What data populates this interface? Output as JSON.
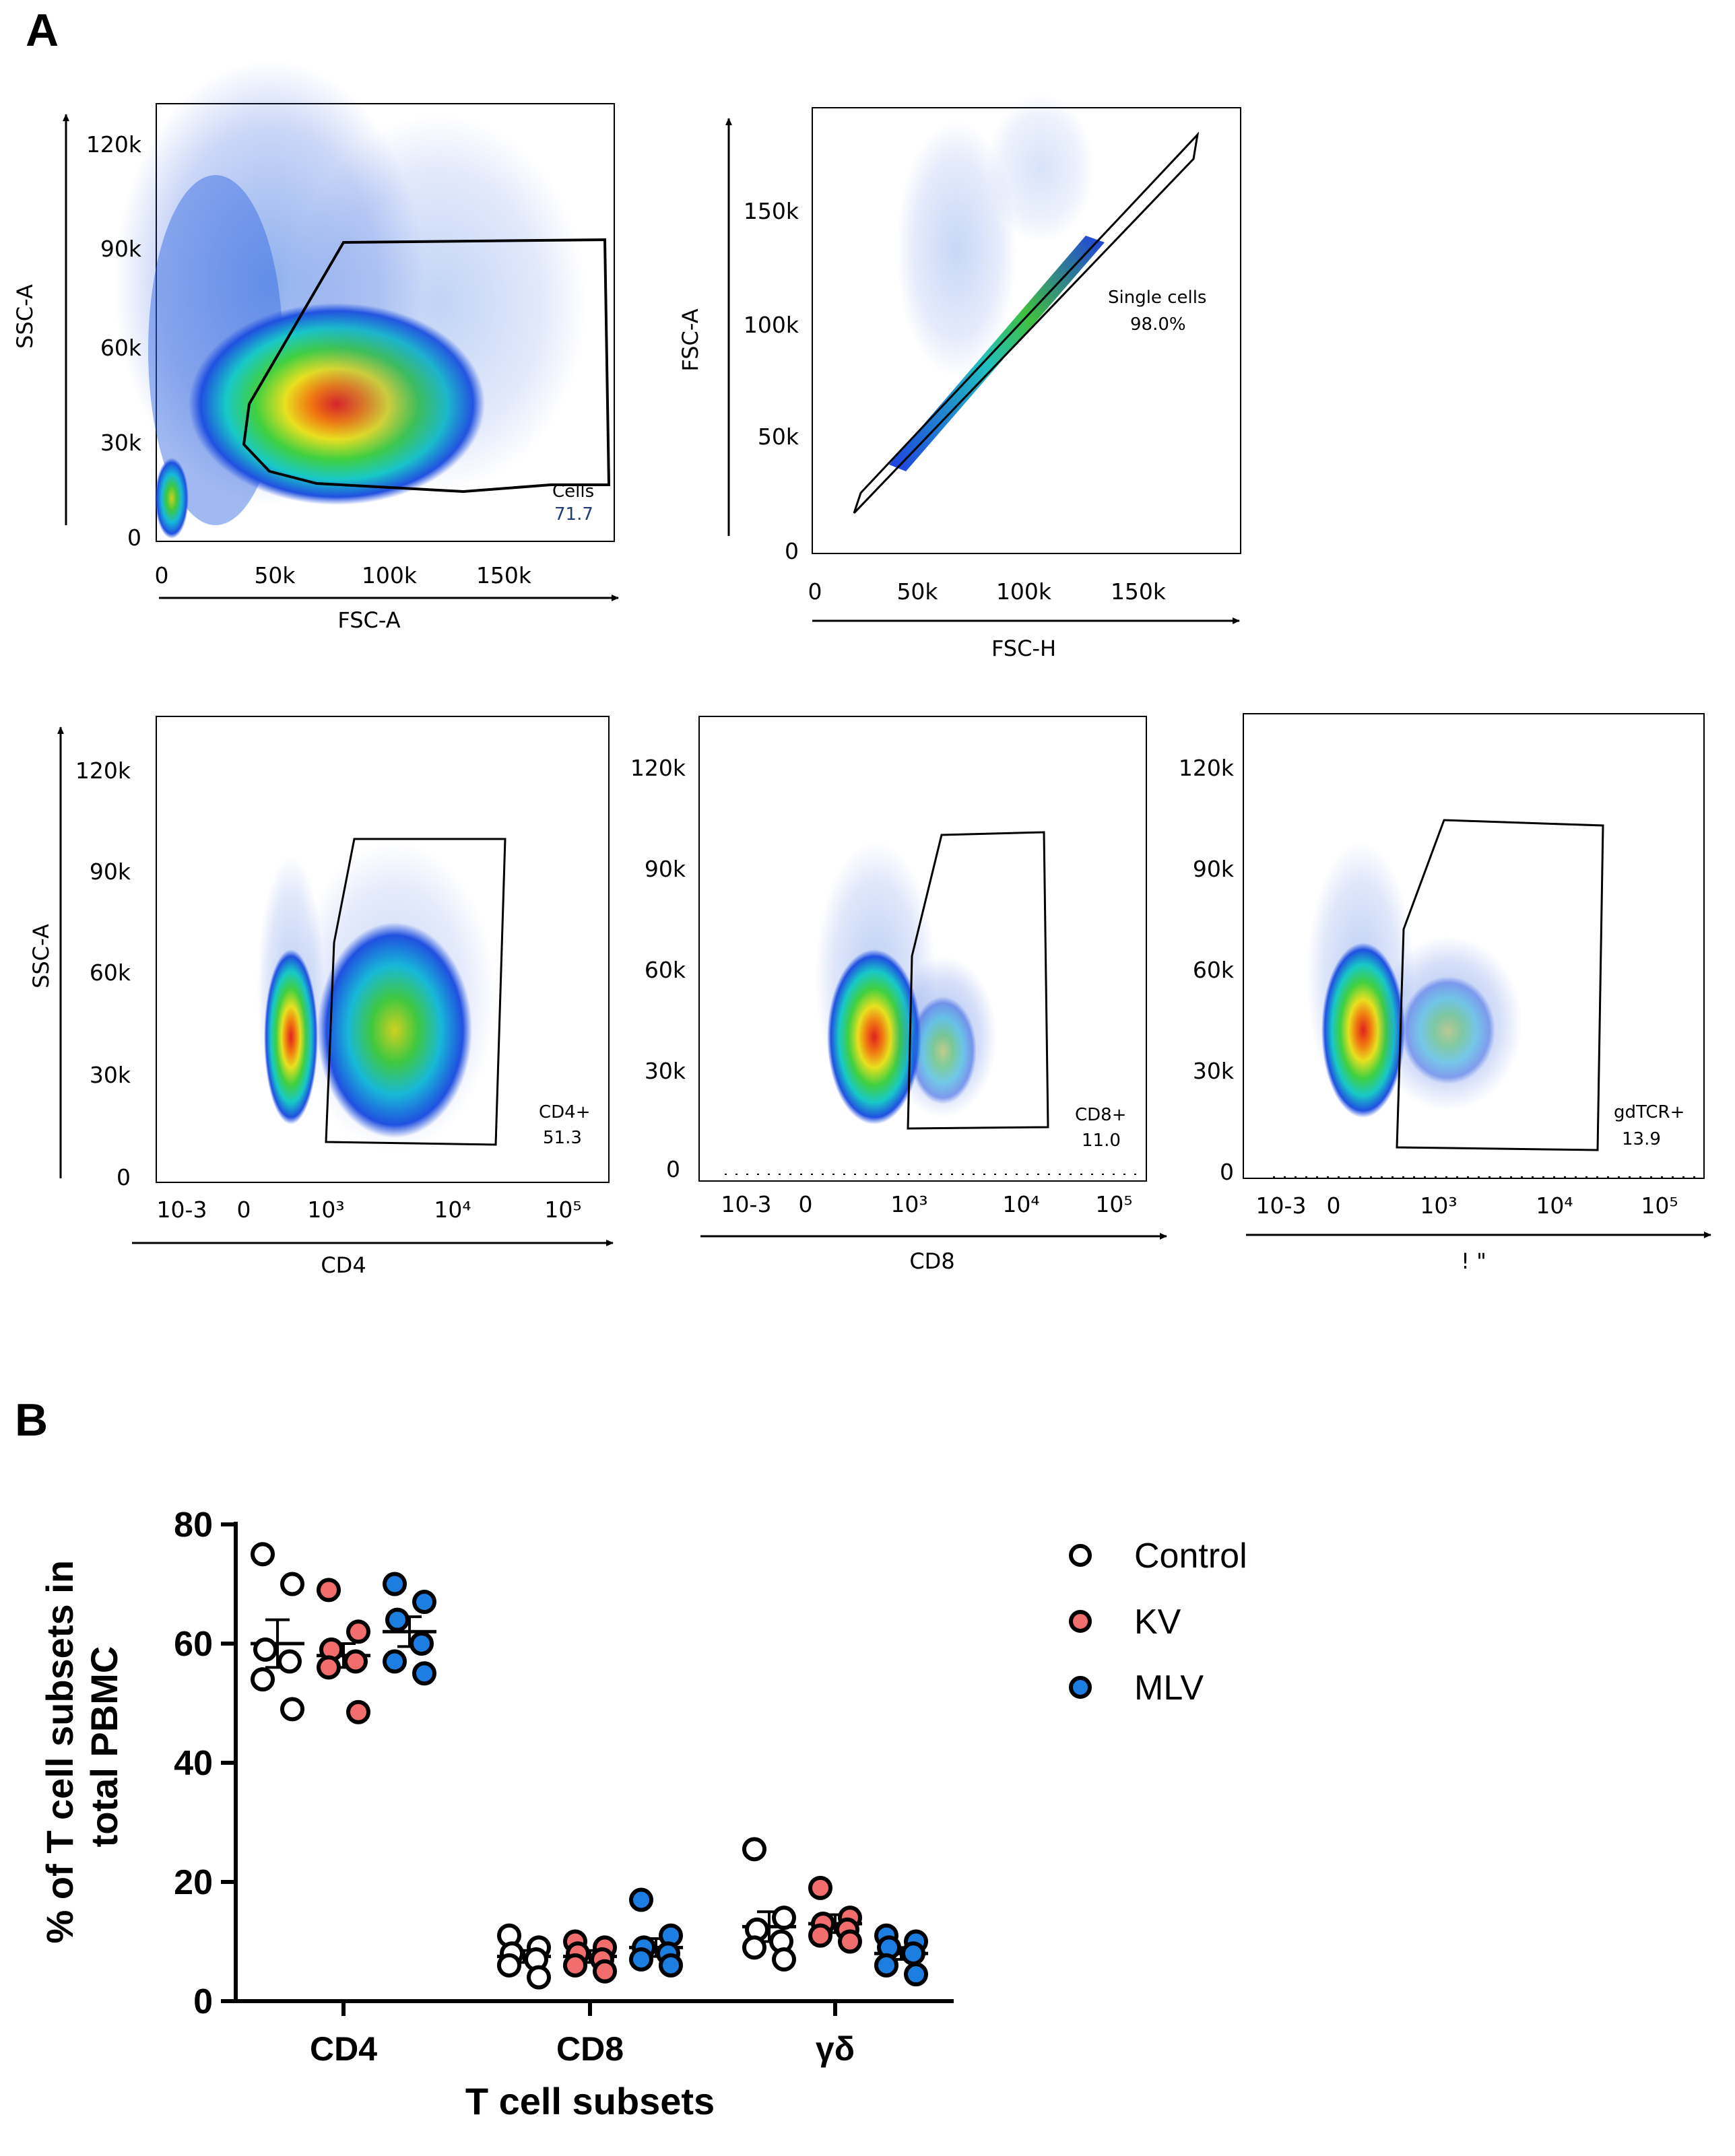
{
  "panel_a_label": "A",
  "panel_b_label": "B",
  "flow_plots": [
    {
      "id": "fsc-ssc",
      "x_label": "FSC-A",
      "y_label": "SSC-A",
      "x_ticks": [
        "0",
        "50k",
        "100k",
        "150k"
      ],
      "y_ticks": [
        "0",
        "30k",
        "60k",
        "90k",
        "120k"
      ],
      "gate_name": "Cells",
      "gate_value": "71.7"
    },
    {
      "id": "singlets",
      "x_label": "FSC-H",
      "y_label": "FSC-A",
      "x_ticks": [
        "0",
        "50k",
        "100k",
        "150k"
      ],
      "y_ticks": [
        "0",
        "50k",
        "100k",
        "150k"
      ],
      "gate_name": "Single cells",
      "gate_value": "98.0%"
    },
    {
      "id": "cd4",
      "x_label": "CD4",
      "y_label": "SSC-A",
      "x_ticks": [
        "10-3",
        "0",
        "10³",
        "10⁴",
        "10⁵"
      ],
      "y_ticks": [
        "0",
        "30k",
        "60k",
        "90k",
        "120k"
      ],
      "gate_name": "CD4+",
      "gate_value": "51.3"
    },
    {
      "id": "cd8",
      "x_label": "CD8",
      "y_label": "",
      "x_ticks": [
        "10-3",
        "0",
        "10³",
        "10⁴",
        "10⁵"
      ],
      "y_ticks": [
        "0",
        "30k",
        "60k",
        "90k",
        "120k"
      ],
      "gate_name": "CD8+",
      "gate_value": "11.0"
    },
    {
      "id": "gdtcr",
      "x_label": "! \"",
      "y_label": "",
      "x_ticks": [
        "10-3",
        "0",
        "10³",
        "10⁴",
        "10⁵"
      ],
      "y_ticks": [
        "0",
        "30k",
        "60k",
        "90k",
        "120k"
      ],
      "gate_name": "gdTCR+",
      "gate_value": "13.9"
    }
  ],
  "colors": {
    "control_fill": "#ffffff",
    "kv_fill": "#f26d6d",
    "mlv_fill": "#1b7ee0",
    "marker_edge": "#000000"
  },
  "chart_data": {
    "type": "scatter",
    "title": "",
    "xlabel": "T cell subsets",
    "ylabel": "% of T cell subsets in total PBMC",
    "ylim": [
      0,
      80
    ],
    "y_ticks": [
      "0",
      "20",
      "40",
      "60",
      "80"
    ],
    "categories": [
      "CD4",
      "CD8",
      "γδ"
    ],
    "legend_position": "top-right",
    "series": [
      {
        "name": "Control",
        "points": [
          [
            75,
            70,
            59,
            57,
            54,
            49
          ],
          [
            11,
            9,
            8,
            7,
            6,
            4
          ],
          [
            25.5,
            14,
            12,
            10,
            9,
            7
          ]
        ],
        "mean": [
          60,
          7.5,
          12.5
        ],
        "sem": [
          4,
          1,
          2.5
        ]
      },
      {
        "name": "KV",
        "points": [
          [
            69,
            62,
            59,
            57,
            56,
            48.5
          ],
          [
            10,
            9,
            8,
            7,
            6,
            5
          ],
          [
            19,
            14,
            13,
            12,
            11,
            10
          ]
        ],
        "mean": [
          58,
          7.5,
          13
        ],
        "sem": [
          2,
          1,
          1.5
        ]
      },
      {
        "name": "MLV",
        "points": [
          [
            70,
            67,
            64,
            60,
            57,
            55
          ],
          [
            17,
            11,
            9,
            8,
            7,
            6
          ],
          [
            11,
            10,
            9,
            8,
            6,
            4.5
          ]
        ],
        "mean": [
          62,
          9,
          8
        ],
        "sem": [
          2.5,
          1.5,
          1
        ]
      }
    ]
  }
}
